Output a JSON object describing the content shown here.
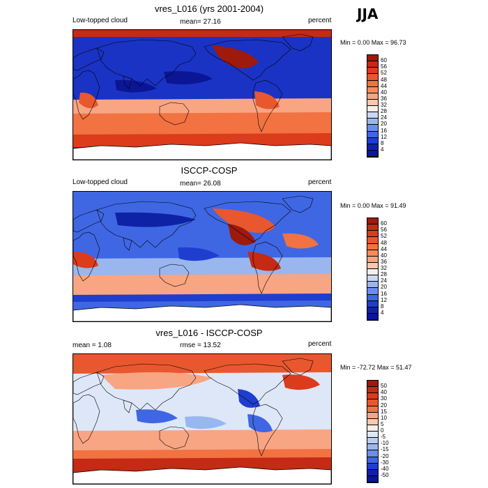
{
  "season": "JJA",
  "colors": {
    "deep_blue": "#0a1696",
    "blue": "#2a4be0",
    "light_blue": "#9ab6ee",
    "white": "#f4f2ee",
    "light_red": "#f6b79b",
    "red": "#e9562f",
    "dark_red": "#a11a0b",
    "coast": "#000000",
    "antarctica": "#ffffff"
  },
  "panels": [
    {
      "title": "vres_L016 (yrs 2001-2004)",
      "left_label": "Low-topped cloud",
      "center_label": "mean=  27.16",
      "right_label": "percent",
      "minmax": "Min =   0.00 Max =  96.73",
      "variant": "model",
      "colorbar": {
        "labels": [
          "60",
          "56",
          "52",
          "48",
          "44",
          "40",
          "36",
          "32",
          "28",
          "24",
          "20",
          "16",
          "12",
          "8",
          "4"
        ],
        "colors": [
          "#9d1a0c",
          "#c52a14",
          "#dc3b1c",
          "#e9572f",
          "#f27241",
          "#f68c5e",
          "#f8a583",
          "#fbc7ae",
          "#f6efe9",
          "#c9d8f4",
          "#9ab6ee",
          "#6c8ee9",
          "#3f67e3",
          "#1f3ed0",
          "#0e22a8",
          "#0a1696"
        ]
      }
    },
    {
      "title": "ISCCP-COSP",
      "left_label": "Low-topped cloud",
      "center_label": "mean=  26.08",
      "right_label": "percent",
      "minmax": "Min =   0.00 Max =  91.49",
      "variant": "obs",
      "colorbar": {
        "labels": [
          "60",
          "56",
          "52",
          "48",
          "44",
          "40",
          "36",
          "32",
          "28",
          "24",
          "20",
          "16",
          "12",
          "8",
          "4"
        ],
        "colors": [
          "#9d1a0c",
          "#c52a14",
          "#dc3b1c",
          "#e9572f",
          "#f27241",
          "#f68c5e",
          "#f8a583",
          "#fbc7ae",
          "#f6efe9",
          "#c9d8f4",
          "#9ab6ee",
          "#6c8ee9",
          "#3f67e3",
          "#1f3ed0",
          "#0e22a8",
          "#0a1696"
        ]
      }
    },
    {
      "title": "vres_L016 - ISCCP-COSP",
      "left_label": "mean =   1.08",
      "center_label": "rmse =  13.52",
      "right_label": "percent",
      "minmax": "Min = -72.72 Max =  51.47",
      "variant": "diff",
      "colorbar": {
        "labels": [
          "50",
          "40",
          "30",
          "20",
          "15",
          "10",
          "5",
          "0",
          "-5",
          "-10",
          "-15",
          "-20",
          "-30",
          "-40",
          "-50"
        ],
        "colors": [
          "#9d1a0c",
          "#c52a14",
          "#dc3b1c",
          "#e9572f",
          "#f27241",
          "#f8a583",
          "#fbc7ae",
          "#f6efe9",
          "#dde7f7",
          "#b9cdf1",
          "#9ab6ee",
          "#6c8ee9",
          "#3f67e3",
          "#1f3ed0",
          "#0e22a8",
          "#0a1696"
        ]
      }
    }
  ],
  "chart_data": [
    {
      "type": "heatmap",
      "title": "vres_L016 (yrs 2001-2004)",
      "subtitle_left": "Low-topped cloud",
      "subtitle_center": "mean=  27.16",
      "units": "percent",
      "min": 0.0,
      "max": 96.73,
      "colorbar_levels": [
        4,
        8,
        12,
        16,
        20,
        24,
        28,
        32,
        36,
        40,
        44,
        48,
        52,
        56,
        60
      ]
    },
    {
      "type": "heatmap",
      "title": "ISCCP-COSP",
      "subtitle_left": "Low-topped cloud",
      "subtitle_center": "mean=  26.08",
      "units": "percent",
      "min": 0.0,
      "max": 91.49,
      "colorbar_levels": [
        4,
        8,
        12,
        16,
        20,
        24,
        28,
        32,
        36,
        40,
        44,
        48,
        52,
        56,
        60
      ]
    },
    {
      "type": "heatmap",
      "title": "vres_L016 - ISCCP-COSP",
      "subtitle_left": "mean =   1.08",
      "subtitle_center": "rmse =  13.52",
      "units": "percent",
      "min": -72.72,
      "max": 51.47,
      "colorbar_levels": [
        -50,
        -40,
        -30,
        -20,
        -15,
        -10,
        -5,
        0,
        5,
        10,
        15,
        20,
        30,
        40,
        50
      ]
    }
  ]
}
